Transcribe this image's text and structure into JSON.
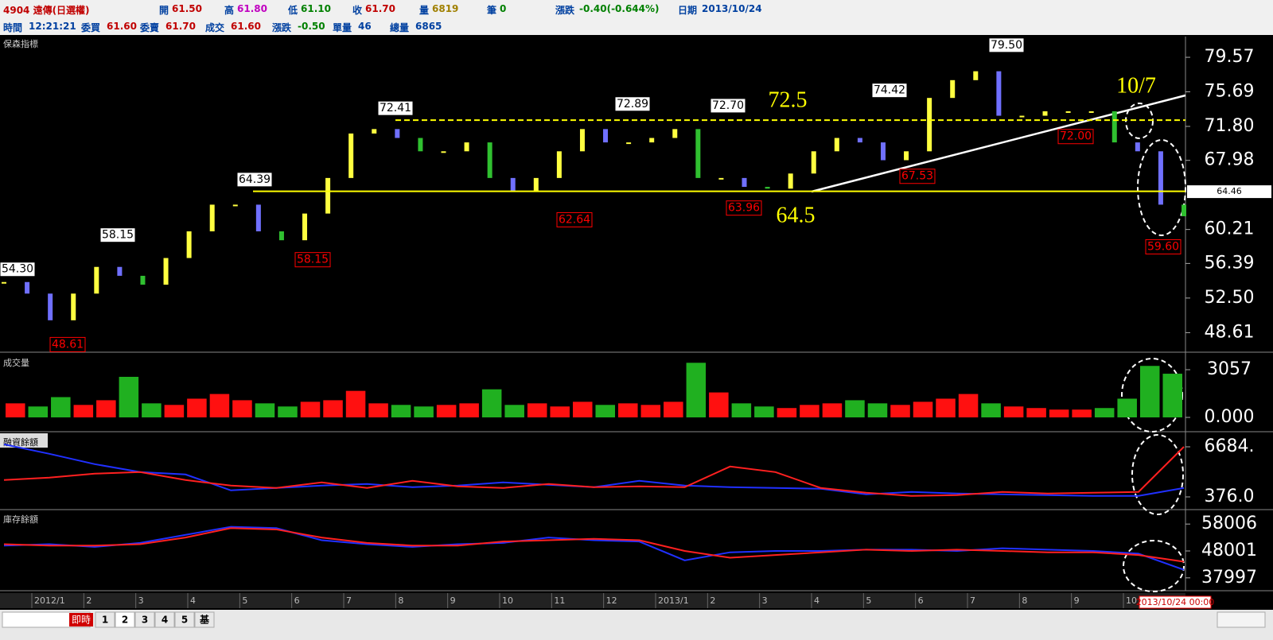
{
  "header": {
    "row1": [
      {
        "label": "4904 遠傳(日選權)"
      },
      {
        "label": "開",
        "value": "61.50"
      },
      {
        "label": "高",
        "value": "61.80"
      },
      {
        "label": "低",
        "value": "61.10"
      },
      {
        "label": "收",
        "value": "61.70"
      },
      {
        "label": "量",
        "value": "6819"
      },
      {
        "label": "筆",
        "value": "0"
      },
      {
        "label": "漲跌",
        "value": "-0.40(-0.644%)"
      },
      {
        "label": "日期",
        "value": "2013/10/24"
      }
    ],
    "row2": [
      {
        "label": "時間",
        "value": "12:21:21"
      },
      {
        "label": "委買",
        "value": "61.60"
      },
      {
        "label": "委賣",
        "value": "61.70"
      },
      {
        "label": "成交",
        "value": "61.60"
      },
      {
        "label": "漲跌",
        "value": "-0.50"
      },
      {
        "label": "單量",
        "value": "46"
      },
      {
        "label": "總量",
        "value": "6865"
      }
    ]
  },
  "chart_data": [
    {
      "type": "candlestick",
      "title": "保森指標",
      "ylim": [
        46.5,
        81.9
      ],
      "yticks": [
        79.57,
        75.69,
        {
          "value": 71.8,
          "label": "71.80"
        },
        67.98,
        60.21,
        56.39,
        {
          "value": 52.5,
          "label": "52.50"
        },
        48.61
      ],
      "current": 64.46,
      "values": [
        54.3,
        53,
        50,
        53,
        56,
        55,
        54,
        57,
        60,
        63,
        63,
        60,
        59,
        62,
        66,
        71,
        71.5,
        70.5,
        69,
        69,
        70,
        66,
        64.5,
        66,
        69,
        71.5,
        70,
        70,
        70.5,
        71.5,
        66,
        66,
        65,
        64.8,
        66.5,
        69,
        70.5,
        70,
        68,
        69,
        75,
        77,
        78,
        73,
        73,
        73.5,
        73.5,
        73.5,
        70,
        69,
        63,
        61.7
      ],
      "annotations": [
        {
          "value": 54.3,
          "label": "54.30",
          "kind": "high"
        },
        {
          "value": 58.15,
          "label": "58.15",
          "kind": "high"
        },
        {
          "value": 64.39,
          "label": "64.39",
          "kind": "high"
        },
        {
          "value": 72.41,
          "label": "72.41",
          "kind": "high"
        },
        {
          "value": 72.89,
          "label": "72.89",
          "kind": "high"
        },
        {
          "value": 72.7,
          "label": "72.70",
          "kind": "high"
        },
        {
          "value": 74.42,
          "label": "74.42",
          "kind": "high"
        },
        {
          "value": 79.5,
          "label": "79.50",
          "kind": "high"
        },
        {
          "value": 48.61,
          "label": "48.61",
          "kind": "low"
        },
        {
          "value": 58.15,
          "label": "58.15",
          "kind": "low"
        },
        {
          "value": 62.64,
          "label": "62.64",
          "kind": "low"
        },
        {
          "value": 63.96,
          "label": "63.96",
          "kind": "low"
        },
        {
          "value": 67.53,
          "label": "67.53",
          "kind": "low"
        },
        {
          "value": 72.0,
          "label": "72.00",
          "kind": "low"
        },
        {
          "value": 59.6,
          "label": "59.60",
          "kind": "low"
        }
      ],
      "levels": [
        {
          "value": 72.5,
          "style": "dashed"
        },
        {
          "value": 64.5,
          "style": "solid"
        }
      ],
      "note": "10/7"
    },
    {
      "type": "bar",
      "title": "成交量",
      "ylim": [
        -815,
        3975
      ],
      "yticks": [
        {
          "value": 3057,
          "label": "3057"
        },
        {
          "value": 0,
          "label": "0.000"
        }
      ],
      "values": [
        900,
        700,
        1300,
        800,
        1100,
        2600,
        900,
        800,
        1200,
        1500,
        1100,
        900,
        700,
        1000,
        1100,
        1700,
        900,
        800,
        700,
        800,
        900,
        1800,
        800,
        900,
        700,
        1000,
        800,
        900,
        800,
        1000,
        3500,
        1600,
        900,
        700,
        600,
        800,
        900,
        1100,
        900,
        800,
        1000,
        1200,
        1500,
        900,
        700,
        600,
        500,
        500,
        600,
        1200,
        3300,
        2800
      ]
    },
    {
      "type": "line",
      "title": "融資餘額",
      "ylim": [
        -1126,
        8185
      ],
      "yticks": [
        {
          "value": 6684,
          "label": "6684."
        },
        {
          "value": 376,
          "label": "376.0"
        }
      ],
      "series": [
        {
          "name": "blue",
          "color": "#2030ff",
          "values": [
            7000,
            5800,
            4500,
            3500,
            3200,
            1200,
            1500,
            1800,
            2000,
            1600,
            1800,
            2200,
            1900,
            1600,
            2400,
            1800,
            1600,
            1500,
            1400,
            700,
            1000,
            800,
            700,
            600,
            500,
            500,
            1500
          ]
        },
        {
          "name": "red",
          "color": "#ff2020",
          "values": [
            2500,
            2800,
            3300,
            3500,
            2500,
            1800,
            1500,
            2200,
            1500,
            2400,
            1700,
            1500,
            2000,
            1600,
            1700,
            1600,
            4200,
            3500,
            1500,
            900,
            500,
            600,
            1000,
            800,
            900,
            1000,
            6684
          ]
        }
      ]
    },
    {
      "type": "line",
      "title": "庫存餘額",
      "ylim": [
        33512,
        62491
      ],
      "yticks": [
        58006,
        48001,
        37997
      ],
      "series": [
        {
          "name": "blue",
          "color": "#2030ff",
          "values": [
            50000,
            50500,
            49500,
            51000,
            54000,
            57000,
            56500,
            52000,
            50500,
            49500,
            50500,
            51000,
            53000,
            52000,
            51500,
            44500,
            47500,
            48000,
            48000,
            48500,
            48500,
            48000,
            49000,
            48500,
            48000,
            47000,
            41000
          ]
        },
        {
          "name": "red",
          "color": "#ff2020",
          "values": [
            50500,
            50000,
            50000,
            50500,
            53000,
            56500,
            56000,
            53000,
            51000,
            50000,
            50000,
            51500,
            52000,
            52500,
            52000,
            48000,
            45500,
            46500,
            47500,
            48500,
            48000,
            48500,
            48000,
            47500,
            47500,
            46500,
            44000
          ]
        }
      ]
    }
  ],
  "x_axis": {
    "labels": [
      "2012/1",
      "2",
      "3",
      "4",
      "5",
      "6",
      "7",
      "8",
      "9",
      "10",
      "11",
      "12",
      "2013/1",
      "2",
      "3",
      "4",
      "5",
      "6",
      "7",
      "8",
      "9",
      "10"
    ],
    "cursor": "2013/10/24 00:00"
  },
  "footer": {
    "live": "即時",
    "tabs": [
      "1",
      "2",
      "3",
      "4",
      "5",
      "基"
    ]
  }
}
